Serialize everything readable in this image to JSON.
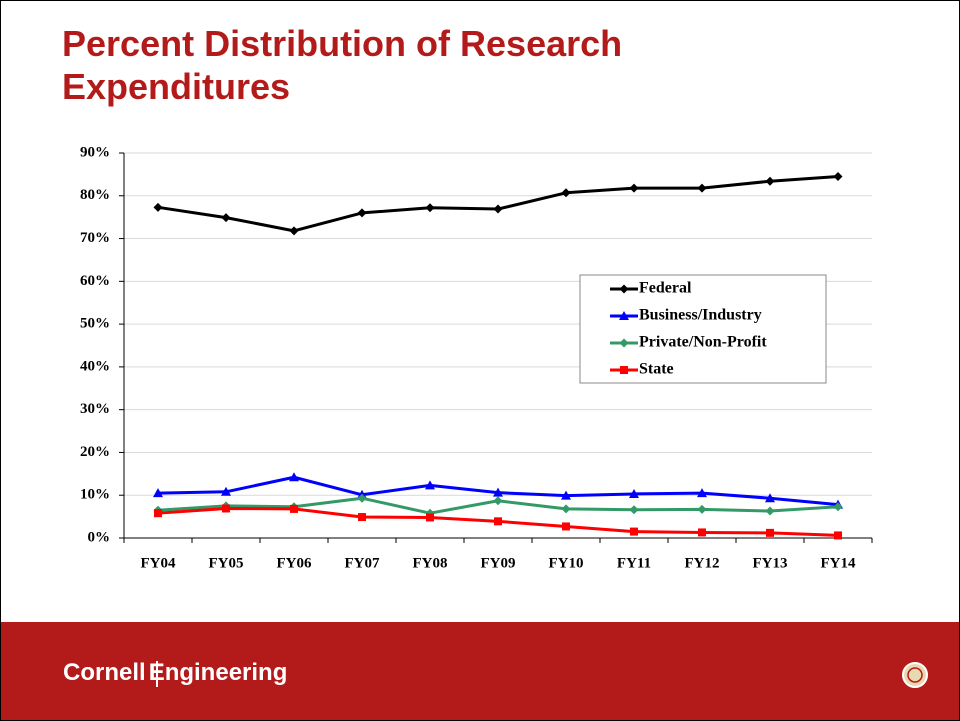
{
  "chart_data": {
    "type": "line",
    "title": "Percent Distribution of Research Expenditures",
    "categories": [
      "FY04",
      "FY05",
      "FY06",
      "FY07",
      "FY08",
      "FY09",
      "FY10",
      "FY11",
      "FY12",
      "FY13",
      "FY14"
    ],
    "series": [
      {
        "name": "Federal",
        "color": "#000000",
        "marker": "diamond",
        "values": [
          77.3,
          74.9,
          71.8,
          76.0,
          77.2,
          76.9,
          80.7,
          81.8,
          81.8,
          83.4,
          84.5
        ]
      },
      {
        "name": "Business/Industry",
        "color": "#0000ff",
        "marker": "triangle",
        "values": [
          10.5,
          10.8,
          14.2,
          10.1,
          12.3,
          10.6,
          9.9,
          10.3,
          10.5,
          9.3,
          7.8
        ]
      },
      {
        "name": "Private/Non-Profit",
        "color": "#339966",
        "marker": "diamond",
        "values": [
          6.5,
          7.5,
          7.3,
          9.3,
          5.8,
          8.7,
          6.8,
          6.6,
          6.7,
          6.3,
          7.3
        ]
      },
      {
        "name": "State",
        "color": "#ff0000",
        "marker": "square",
        "values": [
          5.8,
          6.9,
          6.8,
          4.9,
          4.8,
          3.9,
          2.7,
          1.5,
          1.3,
          1.2,
          0.6
        ]
      }
    ],
    "ylim": [
      0,
      90
    ],
    "yticks": [
      {
        "value": 0,
        "label": "0%"
      },
      {
        "value": 10,
        "label": "10%"
      },
      {
        "value": 20,
        "label": "20%"
      },
      {
        "value": 30,
        "label": "30%"
      },
      {
        "value": 40,
        "label": "40%"
      },
      {
        "value": 50,
        "label": "50%"
      },
      {
        "value": 60,
        "label": "60%"
      },
      {
        "value": 70,
        "label": "70%"
      },
      {
        "value": 80,
        "label": "80%"
      },
      {
        "value": 90,
        "label": "90%"
      }
    ],
    "grid": true,
    "legend": "right"
  },
  "footer": {
    "brand_first": "Cornell",
    "brand_second": "Engineering"
  }
}
